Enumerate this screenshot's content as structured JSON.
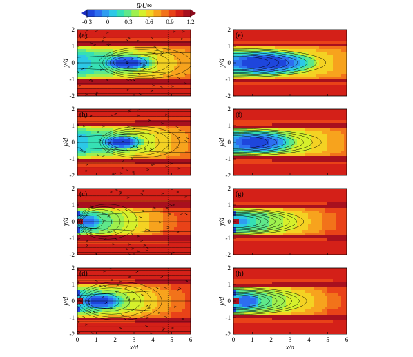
{
  "figure": {
    "colorbar": {
      "label": "u̅/U∞",
      "ticks": [
        -0.3,
        0,
        0.3,
        0.6,
        0.9,
        1.2
      ],
      "range": [
        -0.3,
        1.2
      ],
      "extend": "both",
      "colors": [
        "#1e46dc",
        "#2d6ef0",
        "#2f9cf0",
        "#2cc8e6",
        "#36e0b4",
        "#5fe88a",
        "#9ef04e",
        "#d6f02c",
        "#f4d223",
        "#f7a31d",
        "#f2731a",
        "#e94218",
        "#d42018",
        "#a8101e"
      ],
      "under_color": "#1a2cc0",
      "over_color": "#8c0a1c"
    }
  },
  "chart_data": [
    {
      "panel": "(a)",
      "type": "heatmap",
      "overlay": "streamlines",
      "xlabel": "x/d",
      "ylabel": "y/d",
      "xlim": [
        0,
        6
      ],
      "ylim": [
        -2,
        2
      ],
      "x_ticks": [
        0,
        1,
        2,
        3,
        4,
        5,
        6
      ],
      "y_ticks": [
        -2,
        -1,
        0,
        1,
        2
      ],
      "show_x_ticklabels": false,
      "show_xlabel": false,
      "wake": {
        "length": 6.2,
        "core_value": -0.25,
        "core_x": 2.6,
        "core_rx": 1.4,
        "core_ry": 0.45,
        "half_width": 1.0,
        "band": [
          1.0,
          1.25
        ]
      }
    },
    {
      "panel": "(b)",
      "type": "heatmap",
      "overlay": "streamlines",
      "xlabel": "x/d",
      "ylabel": "y/d",
      "xlim": [
        0,
        6
      ],
      "ylim": [
        -2,
        2
      ],
      "x_ticks": [
        0,
        1,
        2,
        3,
        4,
        5,
        6
      ],
      "y_ticks": [
        -2,
        -1,
        0,
        1,
        2
      ],
      "show_x_ticklabels": false,
      "show_xlabel": false,
      "wake": {
        "length": 6.0,
        "core_value": -0.2,
        "core_x": 2.3,
        "core_rx": 1.2,
        "core_ry": 0.45,
        "half_width": 1.0,
        "band": [
          1.0,
          1.2
        ]
      }
    },
    {
      "panel": "(c)",
      "type": "heatmap",
      "overlay": "streamlines",
      "xlabel": "x/d",
      "ylabel": "y/d",
      "xlim": [
        0,
        6
      ],
      "ylim": [
        -2,
        2
      ],
      "x_ticks": [
        0,
        1,
        2,
        3,
        4,
        5,
        6
      ],
      "y_ticks": [
        -2,
        -1,
        0,
        1,
        2
      ],
      "show_x_ticklabels": false,
      "show_xlabel": false,
      "wake": {
        "length": 4.6,
        "core_value": -0.1,
        "core_x": 0.6,
        "core_rx": 0.9,
        "core_ry": 0.5,
        "half_width": 0.9,
        "band": [
          0.9,
          1.15
        ],
        "jet": 0.9
      }
    },
    {
      "panel": "(d)",
      "type": "heatmap",
      "overlay": "streamlines",
      "xlabel": "x/d",
      "ylabel": "y/d",
      "xlim": [
        0,
        6
      ],
      "ylim": [
        -2,
        2
      ],
      "x_ticks": [
        0,
        1,
        2,
        3,
        4,
        5,
        6
      ],
      "y_ticks": [
        -2,
        -1,
        0,
        1,
        2
      ],
      "show_x_ticklabels": true,
      "show_xlabel": true,
      "wake": {
        "length": 5.0,
        "core_value": -0.2,
        "core_x": 1.2,
        "core_rx": 1.3,
        "core_ry": 0.55,
        "half_width": 0.95,
        "band": [
          0.95,
          1.2
        ],
        "jet": 0.9
      }
    },
    {
      "panel": "(e)",
      "type": "heatmap",
      "overlay": "contours",
      "xlabel": "x/d",
      "ylabel": "y/d",
      "xlim": [
        0,
        6
      ],
      "ylim": [
        -2,
        2
      ],
      "x_ticks": [
        0,
        1,
        2,
        3,
        4,
        5,
        6
      ],
      "y_ticks": [
        -2,
        -1,
        0,
        1,
        2
      ],
      "show_x_ticklabels": false,
      "show_xlabel": false,
      "wake": {
        "length": 6.3,
        "core_value": -0.25,
        "core_x": 1.6,
        "core_rx": 2.6,
        "core_ry": 0.72,
        "half_width": 0.95,
        "band": [
          0.95,
          1.1
        ]
      }
    },
    {
      "panel": "(f)",
      "type": "heatmap",
      "overlay": "contours",
      "xlabel": "x/d",
      "ylabel": "y/d",
      "xlim": [
        0,
        6
      ],
      "ylim": [
        -2,
        2
      ],
      "x_ticks": [
        0,
        1,
        2,
        3,
        4,
        5,
        6
      ],
      "y_ticks": [
        -2,
        -1,
        0,
        1,
        2
      ],
      "show_x_ticklabels": false,
      "show_xlabel": false,
      "wake": {
        "length": 6.0,
        "core_value": -0.2,
        "core_x": 1.2,
        "core_rx": 2.0,
        "core_ry": 0.7,
        "half_width": 0.9,
        "band": [
          0.9,
          1.05
        ],
        "lobes": true
      }
    },
    {
      "panel": "(g)",
      "type": "heatmap",
      "overlay": "contours",
      "xlabel": "x/d",
      "ylabel": "y/d",
      "xlim": [
        0,
        6
      ],
      "ylim": [
        -2,
        2
      ],
      "x_ticks": [
        0,
        1,
        2,
        3,
        4,
        5,
        6
      ],
      "y_ticks": [
        -2,
        -1,
        0,
        1,
        2
      ],
      "show_x_ticklabels": false,
      "show_xlabel": false,
      "wake": {
        "length": 4.8,
        "core_value": -0.05,
        "core_x": 0.45,
        "core_rx": 0.7,
        "core_ry": 0.45,
        "half_width": 0.85,
        "band": [
          0.85,
          1.0
        ],
        "jet": 1.0
      }
    },
    {
      "panel": "(h)",
      "type": "heatmap",
      "overlay": "contours",
      "xlabel": "x/d",
      "ylabel": "y/d",
      "xlim": [
        0,
        6
      ],
      "ylim": [
        -2,
        2
      ],
      "x_ticks": [
        0,
        1,
        2,
        3,
        4,
        5,
        6
      ],
      "y_ticks": [
        -2,
        -1,
        0,
        1,
        2
      ],
      "show_x_ticklabels": true,
      "show_xlabel": true,
      "wake": {
        "length": 5.0,
        "core_value": -0.15,
        "core_x": 0.7,
        "core_rx": 0.9,
        "core_ry": 0.55,
        "half_width": 0.9,
        "band": [
          0.9,
          1.05
        ],
        "jet": 1.0
      }
    }
  ]
}
